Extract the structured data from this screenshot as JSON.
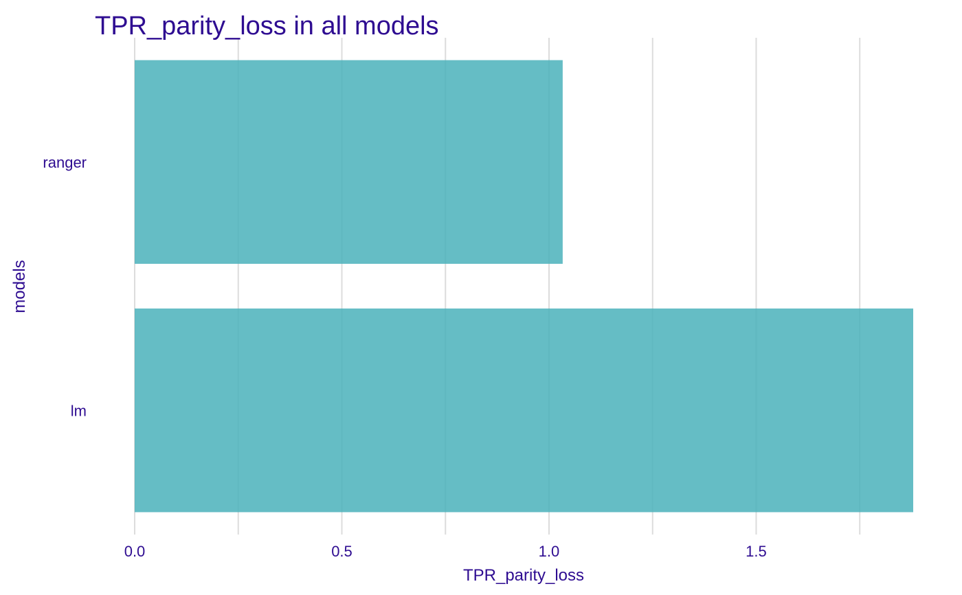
{
  "colors": {
    "text": "#2E0C91",
    "bar": "#4AB1BB",
    "grid": "#DCDCDC",
    "background": "#FFFFFF"
  },
  "chart_data": {
    "type": "bar",
    "orientation": "horizontal",
    "title": "TPR_parity_loss in all models",
    "xlabel": "TPR_parity_loss",
    "ylabel": "models",
    "categories": [
      "ranger",
      "lm"
    ],
    "values": [
      1.033,
      1.879
    ],
    "xlim": [
      0,
      1.879
    ],
    "xticks": [
      0,
      0.5,
      1.0,
      1.5
    ],
    "xtick_labels": [
      "0.0",
      "0.5",
      "1.0",
      "1.5"
    ],
    "minor_gridlines": [
      0.25,
      0.75,
      1.25,
      1.75
    ],
    "grid": true,
    "legend": "none"
  }
}
